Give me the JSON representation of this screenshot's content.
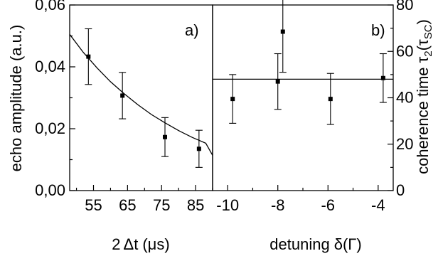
{
  "chart_data": [
    {
      "panel": "a)",
      "type": "scatter",
      "xlabel_parts": [
        "2",
        "Δt",
        "(μs)"
      ],
      "ylabel": "echo amplitude (a.u.)",
      "xlim": [
        48,
        90
      ],
      "ylim": [
        0.0,
        0.06
      ],
      "x_ticks": [
        55,
        65,
        75,
        85
      ],
      "x_tick_labels": [
        "55",
        "65",
        "75",
        "85"
      ],
      "y_ticks": [
        0.0,
        0.02,
        0.04,
        0.06
      ],
      "y_tick_labels": [
        "0,00",
        "0,02",
        "0,04",
        "0,06"
      ],
      "points": [
        {
          "x": 53.5,
          "y": 0.0433,
          "err": 0.009
        },
        {
          "x": 63.5,
          "y": 0.0307,
          "err": 0.0075
        },
        {
          "x": 76.0,
          "y": 0.0173,
          "err": 0.0063
        },
        {
          "x": 86.0,
          "y": 0.0135,
          "err": 0.006
        }
      ],
      "fit": {
        "type": "exponential",
        "x": [
          48,
          52,
          56,
          60,
          64,
          68,
          72,
          76,
          80,
          84,
          88,
          90
        ],
        "y": [
          0.0505,
          0.0447,
          0.0397,
          0.0352,
          0.0313,
          0.0278,
          0.0246,
          0.0219,
          0.0194,
          0.0172,
          0.0153,
          0.0114
        ]
      }
    },
    {
      "panel": "b)",
      "type": "scatter",
      "xlabel_parts": [
        "detuning",
        "δ",
        "(Γ)"
      ],
      "ylabel_parts": [
        "coherence time ",
        "τ",
        "2",
        "(",
        "τ",
        "SC",
        ")"
      ],
      "xlim": [
        -10.6,
        -3.4
      ],
      "ylim": [
        0,
        80
      ],
      "x_ticks": [
        -10,
        -8,
        -6,
        -4
      ],
      "x_tick_labels": [
        "-10",
        "-8",
        "-6",
        "-4"
      ],
      "y_ticks": [
        0,
        20,
        40,
        60,
        80
      ],
      "y_tick_labels": [
        "0",
        "20",
        "40",
        "60",
        "80"
      ],
      "points": [
        {
          "x": -9.8,
          "y": 39.5,
          "err": 10.5
        },
        {
          "x": -8.0,
          "y": 47,
          "err": 12
        },
        {
          "x": -7.8,
          "y": 68.5,
          "err": 17.5
        },
        {
          "x": -5.9,
          "y": 39.5,
          "err": 11
        },
        {
          "x": -3.8,
          "y": 48.5,
          "err": 10.5
        }
      ],
      "fit": {
        "type": "constant",
        "y": 48
      }
    }
  ]
}
